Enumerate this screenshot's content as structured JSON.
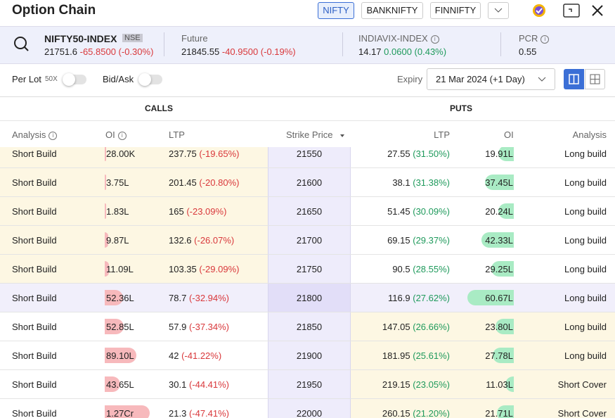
{
  "header": {
    "title": "Option Chain",
    "tabs": [
      "NIFTY",
      "BANKNIFTY",
      "FINNIFTY"
    ]
  },
  "info": {
    "index": {
      "name": "NIFTY50-INDEX",
      "exchange": "NSE",
      "price": "21751.6",
      "change": "-65.8500 (-0.30%)"
    },
    "future": {
      "label": "Future",
      "price": "21845.55",
      "change": "-40.9500 (-0.19%)"
    },
    "vix": {
      "label": "INDIAVIX-INDEX",
      "price": "14.17",
      "change": "0.0600 (0.43%)"
    },
    "pcr": {
      "label": "PCR",
      "value": "0.55"
    }
  },
  "controls": {
    "per_lot": "Per Lot",
    "multiplier": "50X",
    "bid_ask": "Bid/Ask",
    "expiry_label": "Expiry",
    "expiry": "21 Mar 2024 (+1 Day)"
  },
  "table": {
    "calls": "CALLS",
    "puts": "PUTS",
    "columns": [
      "Analysis",
      "OI",
      "LTP",
      "Strike Price",
      "LTP",
      "OI",
      "Analysis"
    ],
    "rows": [
      {
        "call_analysis": "Short Build",
        "call_oi": "28.00K",
        "call_ltp": "237.75",
        "call_change": "(-19.65%)",
        "strike": "21550",
        "put_ltp": "27.55",
        "put_change": "(31.50%)",
        "put_oi": "19.91L",
        "put_analysis": "Long build"
      },
      {
        "call_analysis": "Short Build",
        "call_oi": "3.75L",
        "call_ltp": "201.45",
        "call_change": "(-20.80%)",
        "strike": "21600",
        "put_ltp": "38.1",
        "put_change": "(31.38%)",
        "put_oi": "37.45L",
        "put_analysis": "Long build"
      },
      {
        "call_analysis": "Short Build",
        "call_oi": "1.83L",
        "call_ltp": "165",
        "call_change": "(-23.09%)",
        "strike": "21650",
        "put_ltp": "51.45",
        "put_change": "(30.09%)",
        "put_oi": "20.24L",
        "put_analysis": "Long build"
      },
      {
        "call_analysis": "Short Build",
        "call_oi": "9.87L",
        "call_ltp": "132.6",
        "call_change": "(-26.07%)",
        "strike": "21700",
        "put_ltp": "69.15",
        "put_change": "(29.37%)",
        "put_oi": "42.33L",
        "put_analysis": "Long build"
      },
      {
        "call_analysis": "Short Build",
        "call_oi": "11.09L",
        "call_ltp": "103.35",
        "call_change": "(-29.09%)",
        "strike": "21750",
        "put_ltp": "90.5",
        "put_change": "(28.55%)",
        "put_oi": "29.25L",
        "put_analysis": "Long build"
      },
      {
        "call_analysis": "Short Build",
        "call_oi": "52.36L",
        "call_ltp": "78.7",
        "call_change": "(-32.94%)",
        "strike": "21800",
        "put_ltp": "116.9",
        "put_change": "(27.62%)",
        "put_oi": "60.67L",
        "put_analysis": "Long build"
      },
      {
        "call_analysis": "Short Build",
        "call_oi": "52.85L",
        "call_ltp": "57.9",
        "call_change": "(-37.34%)",
        "strike": "21850",
        "put_ltp": "147.05",
        "put_change": "(26.66%)",
        "put_oi": "23.80L",
        "put_analysis": "Long build"
      },
      {
        "call_analysis": "Short Build",
        "call_oi": "89.10L",
        "call_ltp": "42",
        "call_change": "(-41.22%)",
        "strike": "21900",
        "put_ltp": "181.95",
        "put_change": "(25.61%)",
        "put_oi": "27.78L",
        "put_analysis": "Long build"
      },
      {
        "call_analysis": "Short Build",
        "call_oi": "43.65L",
        "call_ltp": "30.1",
        "call_change": "(-44.41%)",
        "strike": "21950",
        "put_ltp": "219.15",
        "put_change": "(23.05%)",
        "put_oi": "11.03L",
        "put_analysis": "Short Cover"
      },
      {
        "call_analysis": "Short Build",
        "call_oi": "1.27Cr",
        "call_ltp": "21.3",
        "call_change": "(-47.41%)",
        "strike": "22000",
        "put_ltp": "260.15",
        "put_change": "(21.20%)",
        "put_oi": "21.71L",
        "put_analysis": "Short Cover"
      }
    ]
  }
}
